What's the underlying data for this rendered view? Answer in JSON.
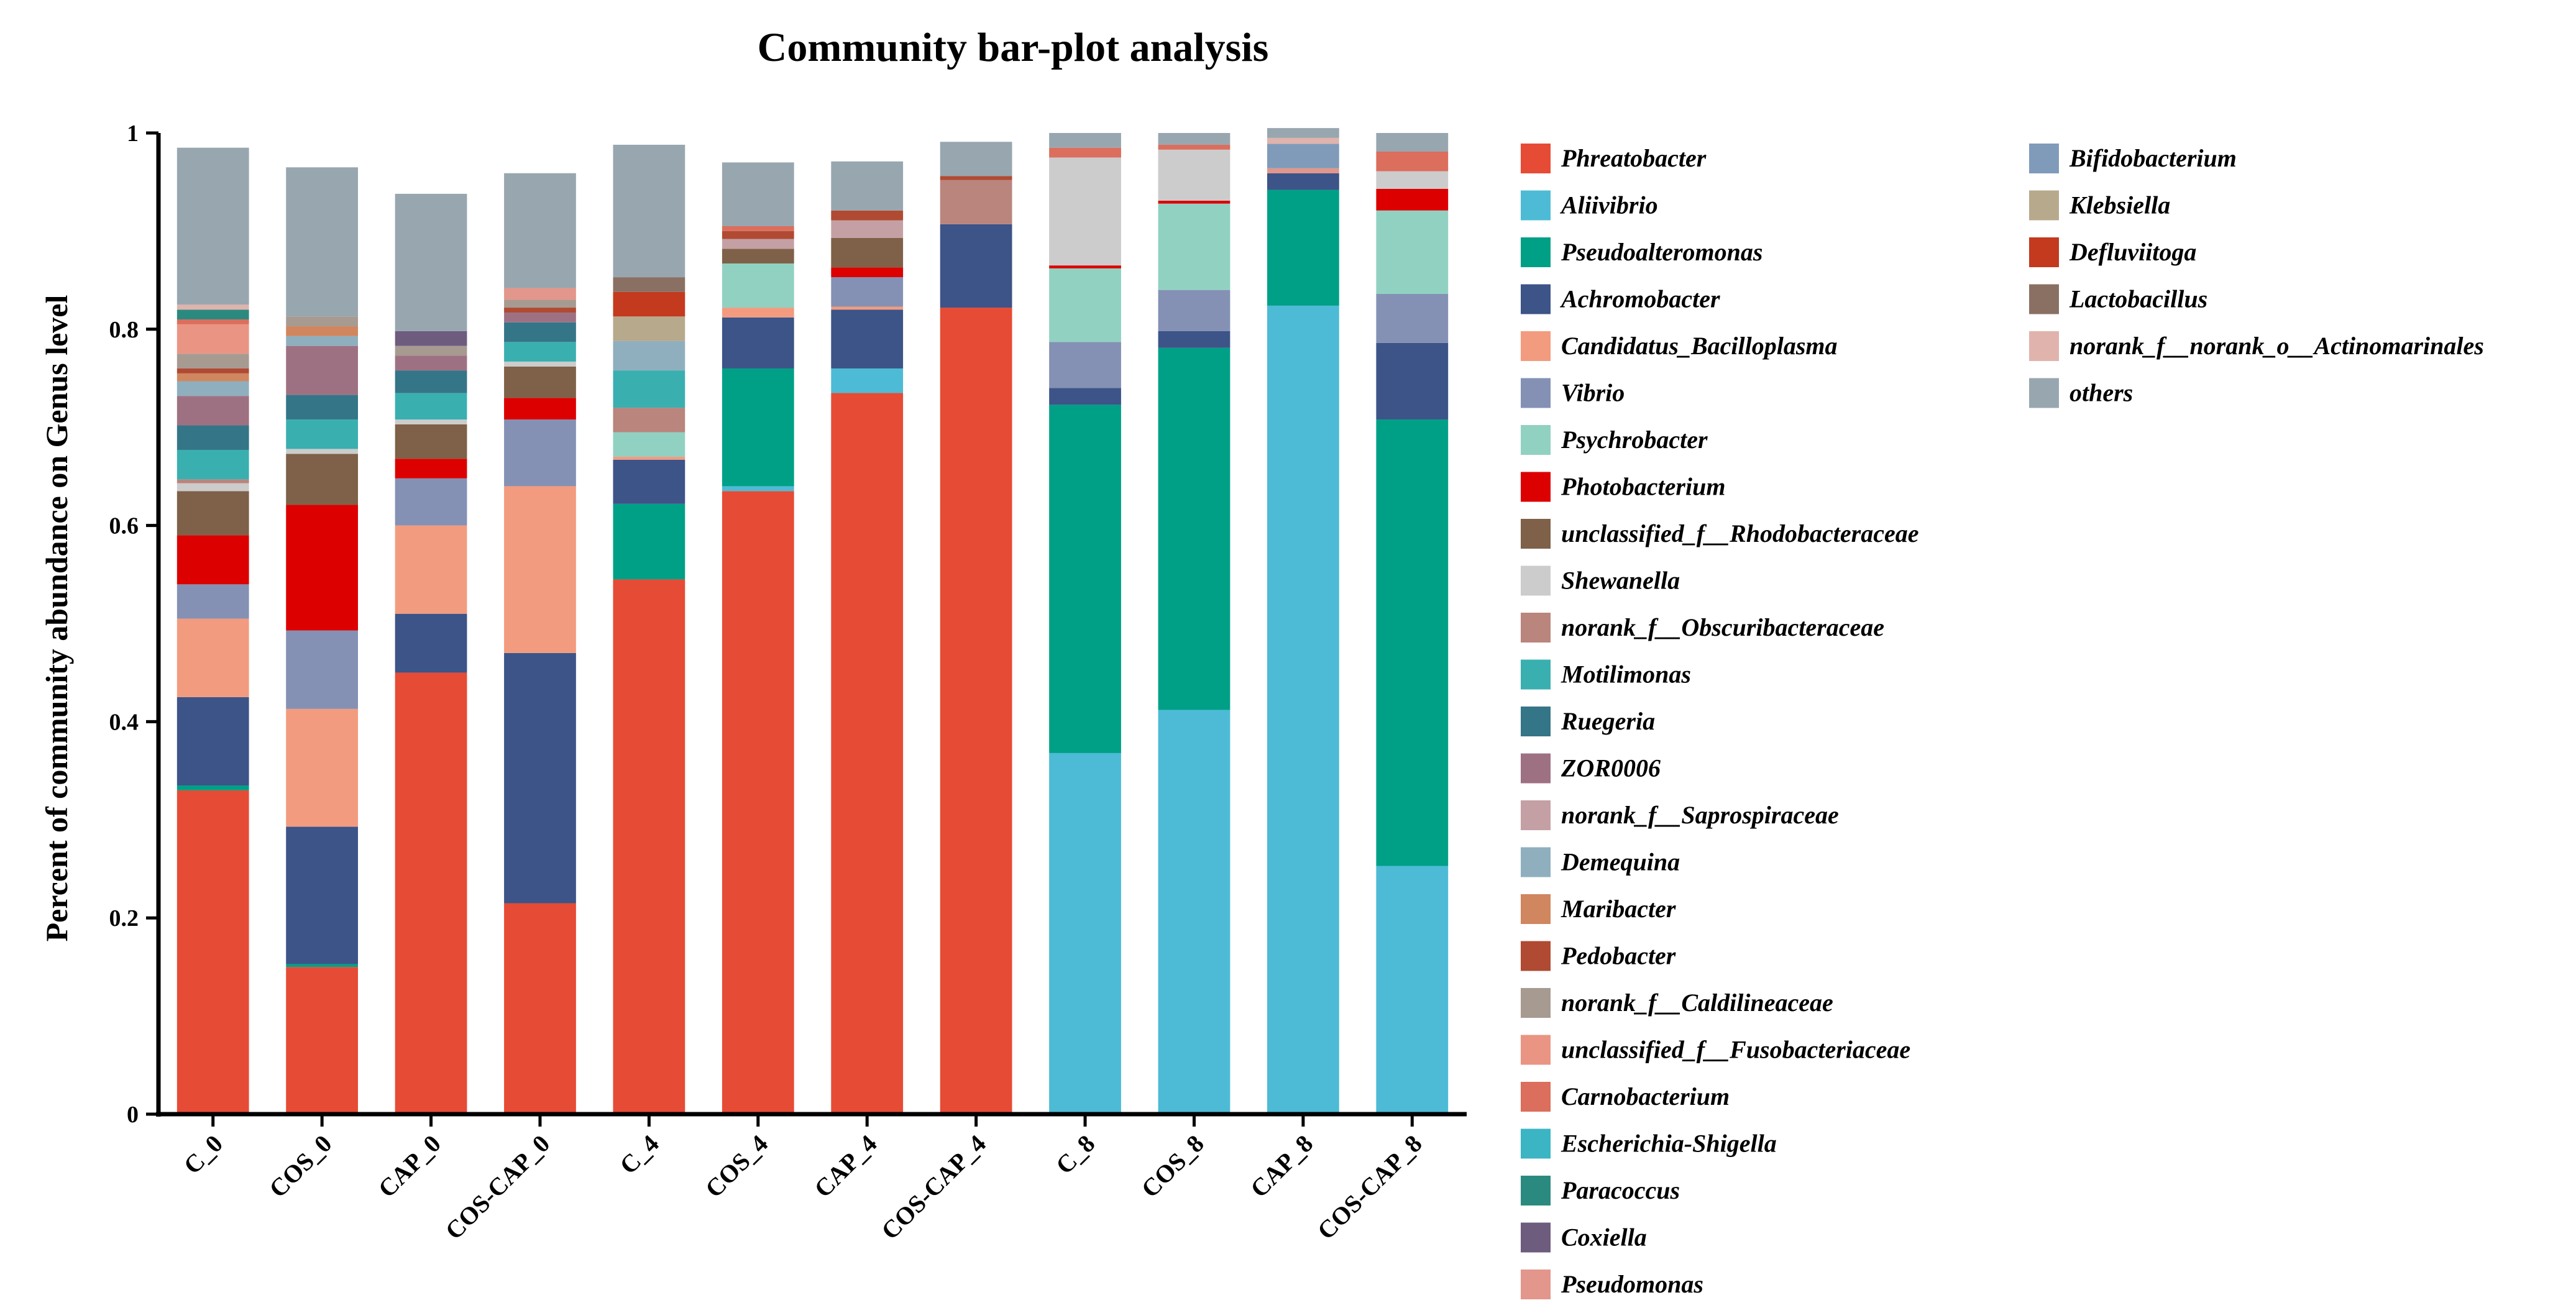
{
  "chart_data": {
    "type": "bar",
    "stacked": true,
    "title": "Community bar-plot analysis",
    "xlabel": "",
    "ylabel": "Percent of community abundance on Genus level",
    "ylim": [
      0,
      1
    ],
    "yticks": [
      0,
      0.2,
      0.4,
      0.6,
      0.8,
      1
    ],
    "ytick_labels": [
      "0",
      "0.2",
      "0.4",
      "0.6",
      "0.8",
      "1"
    ],
    "legend_position": "right",
    "categories": [
      "C_0",
      "COS_0",
      "CAP_0",
      "COS-CAP_0",
      "C_4",
      "COS_4",
      "CAP_4",
      "COS-CAP_4",
      "C_8",
      "COS_8",
      "CAP_8",
      "COS-CAP_8"
    ],
    "series": [
      {
        "name": "Phreatobacter",
        "color": "#E64B35",
        "values": [
          0.33,
          0.15,
          0.45,
          0.215,
          0.545,
          0.635,
          0.735,
          0.822,
          0.0,
          0.0,
          0.0,
          0.0
        ]
      },
      {
        "name": "Aliivibrio",
        "color": "#4DBBD5",
        "values": [
          0.0,
          0.0,
          0.0,
          0.0,
          0.0,
          0.005,
          0.025,
          0.0,
          0.368,
          0.412,
          0.824,
          0.253
        ]
      },
      {
        "name": "Pseudoalteromonas",
        "color": "#00A087",
        "values": [
          0.005,
          0.003,
          0.0,
          0.0,
          0.077,
          0.12,
          0.0,
          0.0,
          0.355,
          0.369,
          0.118,
          0.455
        ]
      },
      {
        "name": "Achromobacter",
        "color": "#3C5488",
        "values": [
          0.09,
          0.14,
          0.06,
          0.255,
          0.045,
          0.052,
          0.06,
          0.085,
          0.017,
          0.017,
          0.017,
          0.078
        ]
      },
      {
        "name": "Candidatus_Bacilloplasma",
        "color": "#F39B7F",
        "values": [
          0.08,
          0.12,
          0.09,
          0.17,
          0.003,
          0.01,
          0.003,
          0.0,
          0.0,
          0.0,
          0.0,
          0.0
        ]
      },
      {
        "name": "Vibrio",
        "color": "#8491B4",
        "values": [
          0.035,
          0.08,
          0.048,
          0.068,
          0.0,
          0.0,
          0.03,
          0.0,
          0.047,
          0.042,
          0.0,
          0.05
        ]
      },
      {
        "name": "Psychrobacter",
        "color": "#91D1C2",
        "values": [
          0.0,
          0.0,
          0.0,
          0.0,
          0.025,
          0.045,
          0.0,
          0.0,
          0.075,
          0.088,
          0.0,
          0.085
        ]
      },
      {
        "name": "Photobacterium",
        "color": "#DC0000",
        "values": [
          0.05,
          0.128,
          0.02,
          0.022,
          0.0,
          0.0,
          0.01,
          0.0,
          0.003,
          0.003,
          0.0,
          0.022
        ]
      },
      {
        "name": "unclassified_f__Rhodobacteraceae",
        "color": "#7E6148",
        "values": [
          0.045,
          0.052,
          0.035,
          0.032,
          0.0,
          0.015,
          0.03,
          0.0,
          0.0,
          0.0,
          0.0,
          0.0
        ]
      },
      {
        "name": "Shewanella",
        "color": "#CCCCCC",
        "values": [
          0.008,
          0.005,
          0.005,
          0.005,
          0.0,
          0.0,
          0.0,
          0.0,
          0.11,
          0.052,
          0.0,
          0.018
        ]
      },
      {
        "name": "norank_f__Obscuribacteraceae",
        "color": "#B9857D",
        "values": [
          0.004,
          0.0,
          0.0,
          0.0,
          0.025,
          0.0,
          0.0,
          0.045,
          0.0,
          0.0,
          0.0,
          0.0
        ]
      },
      {
        "name": "Motilimonas",
        "color": "#3AAFB0",
        "values": [
          0.03,
          0.03,
          0.027,
          0.02,
          0.038,
          0.0,
          0.0,
          0.0,
          0.0,
          0.0,
          0.0,
          0.0
        ]
      },
      {
        "name": "Ruegeria",
        "color": "#357588",
        "values": [
          0.025,
          0.025,
          0.023,
          0.02,
          0.0,
          0.0,
          0.0,
          0.0,
          0.0,
          0.0,
          0.0,
          0.0
        ]
      },
      {
        "name": "ZOR0006",
        "color": "#9E7182",
        "values": [
          0.03,
          0.05,
          0.015,
          0.01,
          0.0,
          0.0,
          0.0,
          0.0,
          0.0,
          0.0,
          0.0,
          0.0
        ]
      },
      {
        "name": "norank_f__Saprospiraceae",
        "color": "#C4A0A5",
        "values": [
          0.0,
          0.0,
          0.0,
          0.0,
          0.0,
          0.01,
          0.018,
          0.0,
          0.0,
          0.0,
          0.0,
          0.0
        ]
      },
      {
        "name": "Demequina",
        "color": "#8FAFBE",
        "values": [
          0.015,
          0.01,
          0.0,
          0.0,
          0.03,
          0.0,
          0.0,
          0.0,
          0.0,
          0.0,
          0.0,
          0.0
        ]
      },
      {
        "name": "Maribacter",
        "color": "#D0865F",
        "values": [
          0.008,
          0.01,
          0.0,
          0.0,
          0.0,
          0.0,
          0.0,
          0.0,
          0.0,
          0.0,
          0.0,
          0.0
        ]
      },
      {
        "name": "Pedobacter",
        "color": "#B04A32",
        "values": [
          0.005,
          0.0,
          0.0,
          0.005,
          0.0,
          0.008,
          0.01,
          0.004,
          0.0,
          0.0,
          0.0,
          0.0
        ]
      },
      {
        "name": "norank_f__Caldilineaceae",
        "color": "#A79A91",
        "values": [
          0.015,
          0.01,
          0.01,
          0.008,
          0.0,
          0.0,
          0.0,
          0.0,
          0.0,
          0.0,
          0.0,
          0.0
        ]
      },
      {
        "name": "unclassified_f__Fusobacteriaceae",
        "color": "#EA9584",
        "values": [
          0.03,
          0.0,
          0.0,
          0.0,
          0.0,
          0.0,
          0.0,
          0.0,
          0.0,
          0.0,
          0.0,
          0.0
        ]
      },
      {
        "name": "Carnobacterium",
        "color": "#DB6E5D",
        "values": [
          0.005,
          0.0,
          0.0,
          0.0,
          0.0,
          0.005,
          0.0,
          0.0,
          0.01,
          0.005,
          0.0,
          0.02
        ]
      },
      {
        "name": "Escherichia-Shigella",
        "color": "#3BB4C4",
        "values": [
          0.0,
          0.0,
          0.0,
          0.0,
          0.0,
          0.0,
          0.0,
          0.0,
          0.0,
          0.0,
          0.0,
          0.0
        ]
      },
      {
        "name": "Paracoccus",
        "color": "#2B8A80",
        "values": [
          0.01,
          0.0,
          0.0,
          0.0,
          0.0,
          0.0,
          0.0,
          0.0,
          0.0,
          0.0,
          0.0,
          0.0
        ]
      },
      {
        "name": "Coxiella",
        "color": "#6E5C7E",
        "values": [
          0.0,
          0.0,
          0.015,
          0.0,
          0.0,
          0.0,
          0.0,
          0.0,
          0.0,
          0.0,
          0.0,
          0.0
        ]
      },
      {
        "name": "Pseudomonas",
        "color": "#E3968B",
        "values": [
          0.0,
          0.0,
          0.0,
          0.012,
          0.0,
          0.0,
          0.0,
          0.0,
          0.0,
          0.0,
          0.005,
          0.0
        ]
      },
      {
        "name": "Bifidobacterium",
        "color": "#809BBA",
        "values": [
          0.0,
          0.0,
          0.0,
          0.0,
          0.0,
          0.0,
          0.0,
          0.0,
          0.0,
          0.0,
          0.025,
          0.0
        ]
      },
      {
        "name": "Klebsiella",
        "color": "#B7A98B",
        "values": [
          0.0,
          0.0,
          0.0,
          0.0,
          0.025,
          0.0,
          0.0,
          0.0,
          0.0,
          0.0,
          0.0,
          0.0
        ]
      },
      {
        "name": "Defluviitoga",
        "color": "#C33A1F",
        "values": [
          0.0,
          0.0,
          0.0,
          0.0,
          0.025,
          0.0,
          0.0,
          0.0,
          0.0,
          0.0,
          0.0,
          0.0
        ]
      },
      {
        "name": "Lactobacillus",
        "color": "#8A7063",
        "values": [
          0.0,
          0.0,
          0.0,
          0.0,
          0.015,
          0.0,
          0.0,
          0.0,
          0.0,
          0.0,
          0.0,
          0.0
        ]
      },
      {
        "name": "norank_f__norank_o__Actinomarinales",
        "color": "#E0B3AC",
        "values": [
          0.005,
          0.0,
          0.0,
          0.0,
          0.0,
          0.0,
          0.0,
          0.0,
          0.0,
          0.0,
          0.006,
          0.0
        ]
      },
      {
        "name": "others",
        "color": "#98A7AF",
        "values": [
          0.16,
          0.152,
          0.14,
          0.117,
          0.135,
          0.065,
          0.05,
          0.035,
          0.015,
          0.012,
          0.01,
          0.019
        ]
      }
    ]
  }
}
